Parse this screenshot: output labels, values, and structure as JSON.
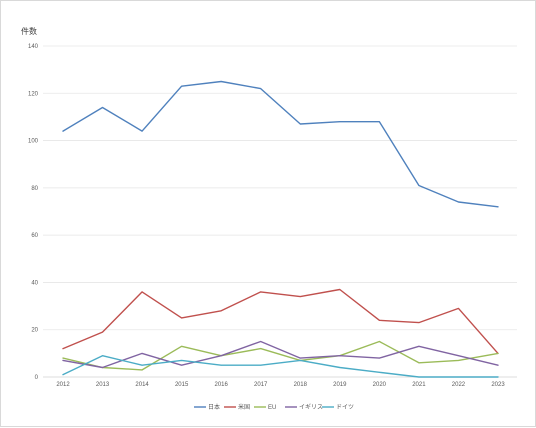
{
  "chart_data": {
    "type": "line",
    "ylabel": "件数",
    "x": [
      "2012",
      "2013",
      "2014",
      "2015",
      "2016",
      "2017",
      "2018",
      "2019",
      "2020",
      "2021",
      "2022",
      "2023"
    ],
    "ylim": [
      0,
      140
    ],
    "yticks": [
      0,
      20,
      40,
      60,
      80,
      100,
      120,
      140
    ],
    "grid": true,
    "legend_position": "bottom",
    "series": [
      {
        "name": "日本",
        "color": "#4f81bd",
        "values": [
          104,
          114,
          104,
          123,
          125,
          122,
          107,
          108,
          108,
          81,
          74,
          72
        ]
      },
      {
        "name": "米国",
        "color": "#c0504d",
        "values": [
          12,
          19,
          36,
          25,
          28,
          36,
          34,
          37,
          24,
          23,
          29,
          10
        ]
      },
      {
        "name": "EU",
        "color": "#9bbb59",
        "values": [
          8,
          4,
          3,
          13,
          9,
          12,
          7,
          9,
          15,
          6,
          7,
          10
        ]
      },
      {
        "name": "イギリス",
        "color": "#8064a2",
        "values": [
          7,
          4,
          10,
          5,
          9,
          15,
          8,
          9,
          8,
          13,
          9,
          5
        ]
      },
      {
        "name": "ドイツ",
        "color": "#4bacc6",
        "values": [
          1,
          9,
          5,
          7,
          5,
          5,
          7,
          4,
          2,
          0,
          0,
          0
        ]
      }
    ]
  }
}
